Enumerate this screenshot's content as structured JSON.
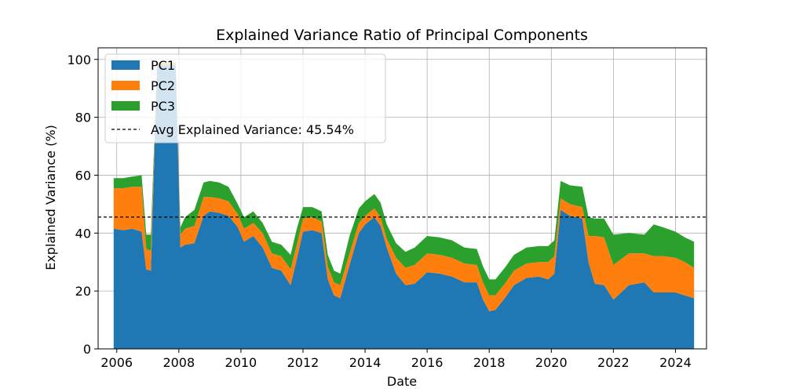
{
  "chart_data": {
    "type": "area",
    "title": "Explained Variance Ratio of Principal Components",
    "xlabel": "Date",
    "ylabel": "Explained Variance (%)",
    "xlim": [
      2005.4,
      2025.0
    ],
    "ylim": [
      0,
      104
    ],
    "x_ticks": [
      2006,
      2008,
      2010,
      2012,
      2014,
      2016,
      2018,
      2020,
      2022,
      2024
    ],
    "y_ticks": [
      0,
      20,
      40,
      60,
      80,
      100
    ],
    "grid": true,
    "legend_position": "top-left",
    "x": [
      2005.9,
      2006.2,
      2006.5,
      2006.8,
      2006.95,
      2007.1,
      2007.3,
      2007.6,
      2007.9,
      2008.05,
      2008.2,
      2008.5,
      2008.8,
      2009.0,
      2009.3,
      2009.6,
      2009.9,
      2010.1,
      2010.4,
      2010.7,
      2011.0,
      2011.3,
      2011.6,
      2011.8,
      2012.0,
      2012.3,
      2012.6,
      2012.8,
      2013.0,
      2013.2,
      2013.5,
      2013.8,
      2014.0,
      2014.3,
      2014.5,
      2014.7,
      2015.0,
      2015.3,
      2015.6,
      2016.0,
      2016.4,
      2016.8,
      2017.2,
      2017.6,
      2017.8,
      2018.0,
      2018.2,
      2018.5,
      2018.8,
      2019.2,
      2019.6,
      2019.9,
      2020.1,
      2020.3,
      2020.6,
      2021.0,
      2021.2,
      2021.4,
      2021.7,
      2022.0,
      2022.5,
      2023.0,
      2023.3,
      2023.6,
      2024.0,
      2024.3,
      2024.6
    ],
    "series": [
      {
        "name": "PC1",
        "color": "#1f77b4",
        "values": [
          41.5,
          41.0,
          41.5,
          40.5,
          27.5,
          27.0,
          98.0,
          98.0,
          98.0,
          35.0,
          36.0,
          36.5,
          46.0,
          47.5,
          47.0,
          46.0,
          42.0,
          37.0,
          39.0,
          35.0,
          28.0,
          27.0,
          22.0,
          31.0,
          40.5,
          41.0,
          40.0,
          24.0,
          18.5,
          17.5,
          29.0,
          40.0,
          43.0,
          45.5,
          42.5,
          35.0,
          26.0,
          22.0,
          22.5,
          26.5,
          26.0,
          25.0,
          23.0,
          23.0,
          17.0,
          13.0,
          13.5,
          17.5,
          22.0,
          24.5,
          25.0,
          24.0,
          26.0,
          48.0,
          46.0,
          45.0,
          30.0,
          22.5,
          22.0,
          17.0,
          22.0,
          23.0,
          19.5,
          19.5,
          19.5,
          18.5,
          17.5
        ]
      },
      {
        "name": "PC2",
        "color": "#ff7f0e",
        "values": [
          14.0,
          14.5,
          14.5,
          15.5,
          7.0,
          7.0,
          0.6,
          0.6,
          0.6,
          4.5,
          5.5,
          6.0,
          6.5,
          5.0,
          5.0,
          5.0,
          4.5,
          4.5,
          4.5,
          5.0,
          5.0,
          5.0,
          5.5,
          5.0,
          4.5,
          4.5,
          4.0,
          4.5,
          4.5,
          4.5,
          4.0,
          3.5,
          3.0,
          3.0,
          3.0,
          3.0,
          5.5,
          6.0,
          6.5,
          6.5,
          6.5,
          6.5,
          6.5,
          6.0,
          6.0,
          5.5,
          5.0,
          5.0,
          5.0,
          5.0,
          5.0,
          6.0,
          6.0,
          4.0,
          4.0,
          4.0,
          9.0,
          16.5,
          16.5,
          12.0,
          11.0,
          10.0,
          12.5,
          12.5,
          12.0,
          11.5,
          10.5
        ]
      },
      {
        "name": "PC3",
        "color": "#2ca02c",
        "values": [
          3.5,
          3.5,
          3.5,
          4.0,
          5.0,
          5.5,
          0.2,
          0.2,
          0.2,
          2.5,
          4.0,
          5.5,
          5.0,
          5.5,
          5.5,
          5.0,
          3.5,
          4.0,
          4.0,
          3.5,
          4.0,
          4.0,
          5.0,
          5.5,
          4.0,
          3.5,
          3.5,
          4.0,
          4.0,
          4.0,
          6.0,
          5.0,
          5.0,
          5.0,
          5.0,
          5.0,
          5.0,
          5.5,
          6.0,
          6.0,
          6.0,
          6.0,
          5.5,
          5.5,
          5.5,
          5.5,
          5.5,
          5.5,
          5.5,
          5.5,
          5.5,
          5.5,
          5.5,
          6.0,
          6.5,
          7.0,
          6.5,
          6.0,
          6.5,
          10.5,
          7.0,
          6.5,
          11.0,
          10.0,
          9.0,
          8.5,
          9.0
        ]
      }
    ],
    "reference_line": {
      "label": "Avg Explained Variance: 45.54%",
      "value": 45.54,
      "style": "dashed",
      "color": "#000000"
    }
  }
}
